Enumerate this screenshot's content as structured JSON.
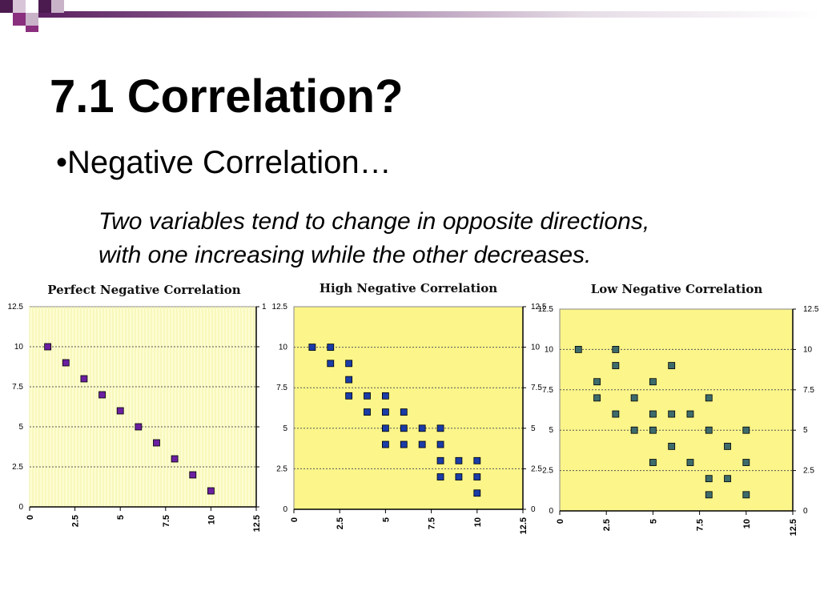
{
  "slide": {
    "title": "7.1 Correlation?",
    "bullet": "•Negative Correlation…",
    "description_line1": "Two variables tend to change in opposite directions,",
    "description_line2": "with one increasing while the other decreases.",
    "colors": {
      "decor_dark": "#4b1a4f",
      "decor_mid": "#8a2f7e",
      "decor_light": "#c9b3c9"
    }
  },
  "chart_data": [
    {
      "type": "scatter",
      "title": "Perfect Negative Correlation",
      "xlim": [
        0,
        12.5
      ],
      "ylim": [
        0,
        12.5
      ],
      "xticks": [
        "0",
        "2.5",
        "5",
        "7.5",
        "10",
        "12.5"
      ],
      "yticks": [
        "0",
        "2.5",
        "5",
        "7.5",
        "10",
        "12.5"
      ],
      "right_ticks": [
        "1"
      ],
      "grid": "dotted horizontal",
      "background": "#fdfdd2",
      "marker_color": "#6a1fa0",
      "points": [
        [
          1,
          10
        ],
        [
          2,
          9
        ],
        [
          3,
          8
        ],
        [
          4,
          7
        ],
        [
          5,
          6
        ],
        [
          6,
          5
        ],
        [
          7,
          4
        ],
        [
          8,
          3
        ],
        [
          9,
          2
        ],
        [
          10,
          1
        ]
      ]
    },
    {
      "type": "scatter",
      "title": "High Negative Correlation",
      "xlim": [
        0,
        12.5
      ],
      "ylim": [
        0,
        12.5
      ],
      "xticks": [
        "0",
        "2.5",
        "5",
        "7.5",
        "10",
        "12.5"
      ],
      "yticks": [
        "0",
        "2.5",
        "5",
        "7.5",
        "10",
        "12.5"
      ],
      "right_ticks": [
        "12.5",
        "10",
        "7.5",
        "5",
        "2.5",
        "0"
      ],
      "grid": "dotted horizontal",
      "background": "#fbf58a",
      "marker_color": "#1a3ca8",
      "points": [
        [
          1,
          10
        ],
        [
          2,
          10
        ],
        [
          2,
          9
        ],
        [
          3,
          9
        ],
        [
          3,
          8
        ],
        [
          3,
          7
        ],
        [
          4,
          7
        ],
        [
          4,
          6
        ],
        [
          5,
          7
        ],
        [
          5,
          6
        ],
        [
          5,
          5
        ],
        [
          5,
          4
        ],
        [
          6,
          6
        ],
        [
          6,
          5
        ],
        [
          6,
          4
        ],
        [
          7,
          5
        ],
        [
          7,
          4
        ],
        [
          8,
          5
        ],
        [
          8,
          4
        ],
        [
          8,
          3
        ],
        [
          8,
          2
        ],
        [
          9,
          3
        ],
        [
          9,
          2
        ],
        [
          10,
          3
        ],
        [
          10,
          2
        ],
        [
          10,
          1
        ]
      ]
    },
    {
      "type": "scatter",
      "title": "Low Negative Correlation",
      "xlim": [
        0,
        12.5
      ],
      "ylim": [
        0,
        12.5
      ],
      "xticks": [
        "0",
        "2.5",
        "5",
        "7.5",
        "10",
        "12.5"
      ],
      "yticks": [
        "12.5",
        "10",
        "7.5",
        "5",
        "2.5",
        "0"
      ],
      "grid": "dotted horizontal",
      "background": "#fbf58a",
      "marker_color": "#3d6b6b",
      "points": [
        [
          1,
          10
        ],
        [
          2,
          8
        ],
        [
          2,
          7
        ],
        [
          3,
          10
        ],
        [
          3,
          9
        ],
        [
          3,
          6
        ],
        [
          4,
          7
        ],
        [
          4,
          5
        ],
        [
          5,
          8
        ],
        [
          5,
          6
        ],
        [
          5,
          5
        ],
        [
          5,
          3
        ],
        [
          6,
          9
        ],
        [
          6,
          6
        ],
        [
          6,
          4
        ],
        [
          7,
          6
        ],
        [
          7,
          3
        ],
        [
          8,
          7
        ],
        [
          8,
          5
        ],
        [
          8,
          2
        ],
        [
          8,
          1
        ],
        [
          9,
          4
        ],
        [
          9,
          2
        ],
        [
          10,
          5
        ],
        [
          10,
          3
        ],
        [
          10,
          1
        ]
      ]
    }
  ]
}
